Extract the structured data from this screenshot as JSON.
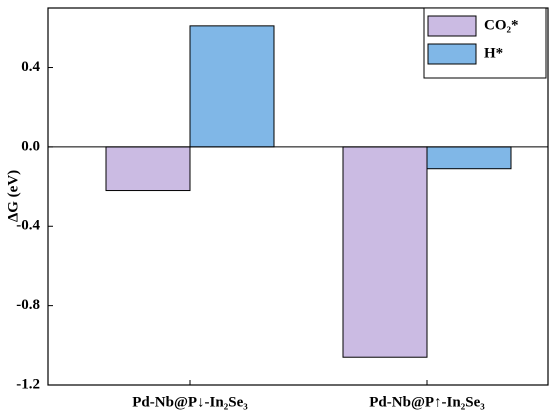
{
  "chart_data": {
    "type": "bar",
    "ylabel": "ΔG (eV)",
    "categories": [
      "Pd-Nb@P↓-In₂Se₃",
      "Pd-Nb@P↑-In₂Se₃"
    ],
    "series": [
      {
        "name": "CO₂*",
        "color": "#cbbbe3",
        "values": [
          -0.22,
          -1.06
        ]
      },
      {
        "name": "H*",
        "color": "#80b7e7",
        "values": [
          0.61,
          -0.11
        ]
      }
    ],
    "ylim": [
      -1.2,
      0.7
    ],
    "yticks": [
      {
        "value": -1.2,
        "label": "-1.2"
      },
      {
        "value": -0.8,
        "label": "-0.8"
      },
      {
        "value": -0.4,
        "label": "-0.4"
      },
      {
        "value": 0,
        "label": "0.0"
      },
      0.4
    ],
    "legend": "top-right",
    "grid": false
  }
}
